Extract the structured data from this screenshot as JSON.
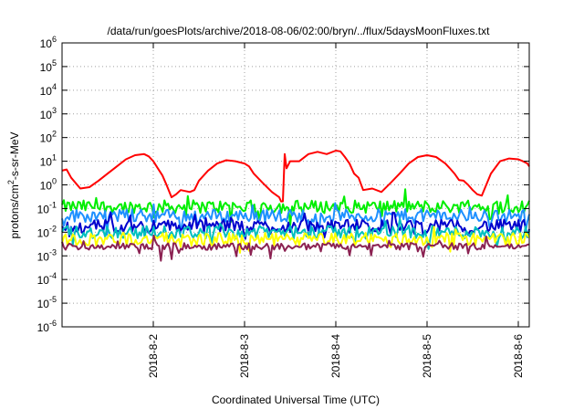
{
  "chart_data": {
    "type": "line",
    "title": "/data/run/goesPlots/archive/2018-08-06/02:00/bryn/../flux/5daysMoonFluxes.txt",
    "xlabel": "Coordinated Universal Time (UTC)",
    "ylabel": "protons/cm²-s-sr-MeV",
    "ylabel_parts": {
      "pre": "protons/cm",
      "sup": "2",
      "post": "-s-sr-MeV"
    },
    "yscale": "log",
    "ylim": [
      1e-06,
      1000000.0
    ],
    "ytick_exponents": [
      -6,
      -5,
      -4,
      -3,
      -2,
      -1,
      0,
      1,
      2,
      3,
      4,
      5,
      6
    ],
    "ytick_base": "10",
    "xlim": [
      1.0,
      6.12
    ],
    "xlim_units": "days of August 2018",
    "xticks": [
      {
        "pos": 2,
        "label": "2018-8-2"
      },
      {
        "pos": 3,
        "label": "2018-8-3"
      },
      {
        "pos": 4,
        "label": "2018-8-4"
      },
      {
        "pos": 5,
        "label": "2018-8-5"
      },
      {
        "pos": 6,
        "label": "2018-8-6"
      }
    ],
    "grid": true,
    "series": [
      {
        "color": "#ff0000",
        "width": 2,
        "x": [
          1.0,
          1.05,
          1.1,
          1.2,
          1.3,
          1.4,
          1.5,
          1.6,
          1.7,
          1.8,
          1.9,
          1.95,
          2.0,
          2.05,
          2.1,
          2.15,
          2.2,
          2.25,
          2.3,
          2.4,
          2.45,
          2.5,
          2.6,
          2.7,
          2.8,
          2.9,
          3.0,
          3.05,
          3.1,
          3.2,
          3.3,
          3.38,
          3.4,
          3.42,
          3.44,
          3.46,
          3.5,
          3.6,
          3.7,
          3.8,
          3.9,
          4.0,
          4.05,
          4.1,
          4.15,
          4.2,
          4.25,
          4.3,
          4.4,
          4.5,
          4.6,
          4.7,
          4.8,
          4.9,
          5.0,
          5.1,
          5.2,
          5.25,
          5.3,
          5.35,
          5.4,
          5.45,
          5.5,
          5.55,
          5.6,
          5.7,
          5.8,
          5.9,
          6.0,
          6.05,
          6.1,
          6.12
        ],
        "y": [
          4,
          4.5,
          2,
          0.7,
          0.8,
          1.5,
          3,
          6,
          12,
          18,
          20,
          16,
          10,
          5,
          2.5,
          0.9,
          0.3,
          0.4,
          0.6,
          0.5,
          0.6,
          1.5,
          4,
          8,
          11,
          10,
          8,
          6,
          3,
          1.2,
          0.5,
          0.3,
          0.2,
          0.2,
          20,
          5,
          10,
          10,
          20,
          25,
          20,
          28,
          26,
          15,
          8,
          3,
          2,
          0.6,
          0.7,
          0.5,
          1.2,
          3,
          8,
          15,
          18,
          15,
          8,
          5,
          3,
          1.6,
          1.5,
          1.0,
          0.6,
          0.4,
          0.35,
          3,
          10,
          13,
          12,
          10,
          8,
          6
        ]
      },
      {
        "color": "#00ee00",
        "width": 2,
        "base": 0.12
      },
      {
        "color": "#1e90ff",
        "width": 2,
        "base": 0.05
      },
      {
        "color": "#0000cd",
        "width": 2,
        "base": 0.018
      },
      {
        "color": "#00bfbf",
        "width": 2,
        "base": 0.01
      },
      {
        "color": "#ffff00",
        "width": 2,
        "base": 0.005
      },
      {
        "color": "#8b2252",
        "width": 2,
        "base": 0.0025
      }
    ]
  }
}
